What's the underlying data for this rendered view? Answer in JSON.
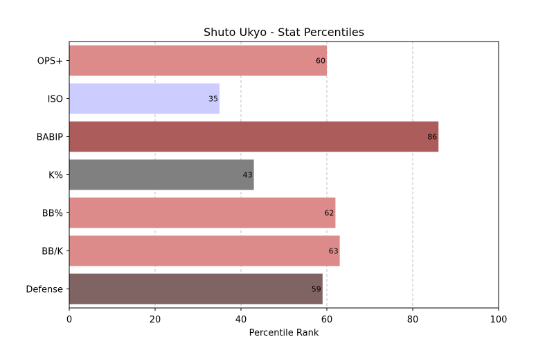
{
  "chart_data": {
    "type": "bar",
    "orientation": "horizontal",
    "title": "Shuto Ukyo - Stat Percentiles",
    "xlabel": "Percentile Rank",
    "ylabel": "",
    "xlim": [
      0,
      100
    ],
    "x_ticks": [
      0,
      20,
      40,
      60,
      80,
      100
    ],
    "grid": "x-dashed",
    "categories": [
      "OPS+",
      "ISO",
      "BABIP",
      "K%",
      "BB%",
      "BB/K",
      "Defense"
    ],
    "values": [
      60,
      35,
      86,
      43,
      62,
      63,
      59
    ],
    "colors": [
      "#dd8a8a",
      "#ccccff",
      "#ad5c5c",
      "#808080",
      "#dd8a8a",
      "#dd8a8a",
      "#806464"
    ]
  }
}
